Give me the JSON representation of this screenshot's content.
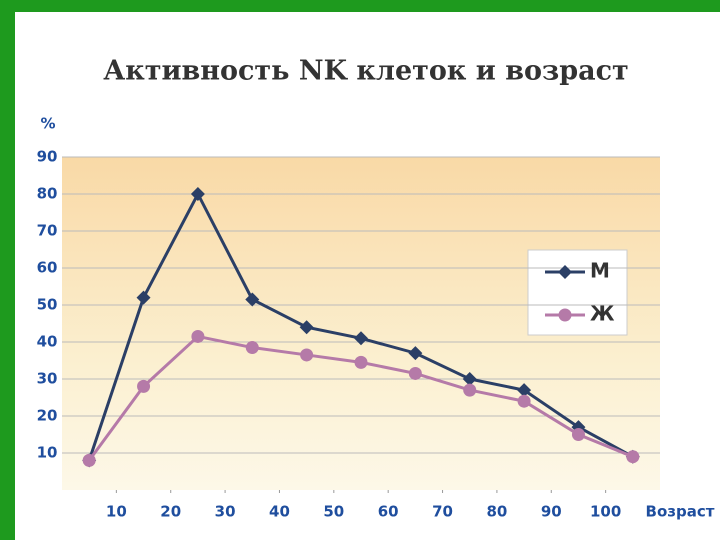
{
  "chart_data": {
    "type": "line",
    "title": "Активность NK клеток и возраст",
    "y_label": "%",
    "x_label": "Возраст",
    "x": [
      5,
      15,
      25,
      35,
      45,
      55,
      65,
      75,
      85,
      95,
      105
    ],
    "series": [
      {
        "name": "М",
        "color": "#2b3f66",
        "marker": "diamond",
        "values": [
          8,
          52,
          80,
          51.5,
          44,
          41,
          37,
          30,
          27,
          17,
          9
        ]
      },
      {
        "name": "Ж",
        "color": "#b57aa8",
        "marker": "circle",
        "values": [
          8,
          28,
          41.5,
          38.5,
          36.5,
          34.5,
          31.5,
          27,
          24,
          15,
          9
        ]
      }
    ],
    "xlim": [
      0,
      110
    ],
    "xticks": [
      10,
      20,
      30,
      40,
      50,
      60,
      70,
      80,
      90,
      100
    ],
    "ylim": [
      0,
      90
    ],
    "yticks": [
      10,
      20,
      30,
      40,
      50,
      60,
      70,
      80,
      90
    ],
    "grid": true,
    "legend": "right"
  }
}
